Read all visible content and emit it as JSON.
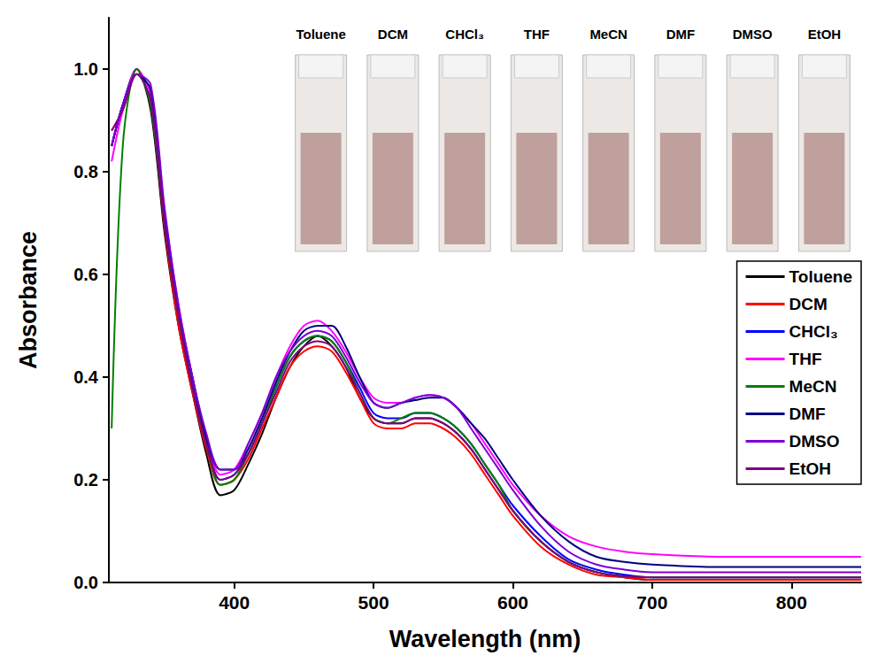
{
  "chart_data": {
    "type": "line",
    "x_label": "Wavelength (nm)",
    "y_label": "Absorbance",
    "x": [
      312,
      320,
      330,
      340,
      350,
      360,
      370,
      380,
      390,
      400,
      410,
      420,
      430,
      440,
      450,
      460,
      470,
      480,
      490,
      500,
      510,
      520,
      530,
      540,
      550,
      560,
      570,
      580,
      590,
      600,
      620,
      640,
      660,
      680,
      700,
      750,
      800,
      850
    ],
    "series": [
      {
        "name": "Toluene",
        "color": "#000000",
        "values": [
          0.85,
          0.93,
          1.0,
          0.92,
          0.68,
          0.5,
          0.37,
          0.25,
          0.17,
          0.18,
          0.23,
          0.29,
          0.36,
          0.42,
          0.46,
          0.48,
          0.46,
          0.42,
          0.36,
          0.32,
          0.31,
          0.31,
          0.32,
          0.32,
          0.31,
          0.29,
          0.26,
          0.22,
          0.18,
          0.14,
          0.08,
          0.04,
          0.02,
          0.01,
          0.005,
          0.005,
          0.005,
          0.005
        ]
      },
      {
        "name": "DCM",
        "color": "#ff0000",
        "values": [
          0.88,
          0.92,
          1.0,
          0.93,
          0.69,
          0.5,
          0.37,
          0.26,
          0.19,
          0.2,
          0.24,
          0.3,
          0.36,
          0.42,
          0.45,
          0.46,
          0.45,
          0.41,
          0.36,
          0.31,
          0.3,
          0.3,
          0.31,
          0.31,
          0.3,
          0.28,
          0.25,
          0.21,
          0.17,
          0.13,
          0.07,
          0.035,
          0.015,
          0.01,
          0.005,
          0.005,
          0.005,
          0.005
        ]
      },
      {
        "name": "CHCl₃",
        "color": "#0000ff",
        "values": [
          0.85,
          0.93,
          1.0,
          0.93,
          0.7,
          0.52,
          0.39,
          0.27,
          0.2,
          0.21,
          0.25,
          0.31,
          0.38,
          0.44,
          0.47,
          0.48,
          0.47,
          0.43,
          0.38,
          0.33,
          0.32,
          0.32,
          0.33,
          0.33,
          0.32,
          0.3,
          0.27,
          0.23,
          0.19,
          0.15,
          0.09,
          0.045,
          0.025,
          0.015,
          0.01,
          0.01,
          0.01,
          0.01
        ]
      },
      {
        "name": "THF",
        "color": "#ff00ff",
        "values": [
          0.82,
          0.92,
          1.0,
          0.95,
          0.72,
          0.54,
          0.4,
          0.28,
          0.21,
          0.22,
          0.27,
          0.33,
          0.4,
          0.46,
          0.5,
          0.51,
          0.49,
          0.45,
          0.4,
          0.36,
          0.35,
          0.35,
          0.36,
          0.365,
          0.36,
          0.34,
          0.31,
          0.27,
          0.23,
          0.19,
          0.13,
          0.09,
          0.07,
          0.06,
          0.055,
          0.05,
          0.05,
          0.05
        ]
      },
      {
        "name": "MeCN",
        "color": "#008000",
        "values": [
          0.3,
          0.85,
          1.0,
          0.93,
          0.7,
          0.52,
          0.38,
          0.27,
          0.19,
          0.2,
          0.25,
          0.31,
          0.38,
          0.44,
          0.47,
          0.48,
          0.47,
          0.43,
          0.37,
          0.32,
          0.31,
          0.32,
          0.33,
          0.33,
          0.32,
          0.3,
          0.27,
          0.23,
          0.19,
          0.14,
          0.08,
          0.04,
          0.02,
          0.012,
          0.01,
          0.01,
          0.01,
          0.01
        ]
      },
      {
        "name": "DMF",
        "color": "#000080",
        "values": [
          0.85,
          0.93,
          0.99,
          0.96,
          0.72,
          0.53,
          0.4,
          0.28,
          0.22,
          0.22,
          0.26,
          0.32,
          0.39,
          0.45,
          0.49,
          0.5,
          0.5,
          0.46,
          0.4,
          0.35,
          0.34,
          0.35,
          0.355,
          0.36,
          0.36,
          0.34,
          0.31,
          0.28,
          0.24,
          0.2,
          0.13,
          0.08,
          0.05,
          0.04,
          0.035,
          0.03,
          0.03,
          0.03
        ]
      },
      {
        "name": "DMSO",
        "color": "#7b00d4",
        "values": [
          0.85,
          0.93,
          0.99,
          0.97,
          0.73,
          0.54,
          0.4,
          0.29,
          0.22,
          0.22,
          0.27,
          0.33,
          0.4,
          0.45,
          0.48,
          0.49,
          0.48,
          0.44,
          0.39,
          0.35,
          0.34,
          0.35,
          0.36,
          0.365,
          0.36,
          0.34,
          0.3,
          0.26,
          0.22,
          0.18,
          0.11,
          0.06,
          0.035,
          0.025,
          0.02,
          0.02,
          0.02,
          0.02
        ]
      },
      {
        "name": "EtOH",
        "color": "#800080",
        "values": [
          0.88,
          0.92,
          0.99,
          0.94,
          0.7,
          0.52,
          0.38,
          0.27,
          0.2,
          0.21,
          0.25,
          0.31,
          0.37,
          0.43,
          0.46,
          0.47,
          0.46,
          0.42,
          0.37,
          0.32,
          0.31,
          0.31,
          0.32,
          0.32,
          0.31,
          0.29,
          0.26,
          0.22,
          0.18,
          0.14,
          0.08,
          0.04,
          0.02,
          0.012,
          0.01,
          0.01,
          0.01,
          0.01
        ]
      }
    ],
    "xlim": [
      310,
      850
    ],
    "xticks": [
      400,
      500,
      600,
      700,
      800
    ],
    "ylim": [
      0,
      1.1
    ],
    "yticks": [
      {
        "value": 0,
        "label": "0.0"
      },
      0.2,
      0.4,
      0.6,
      0.8,
      {
        "value": 1,
        "label": "1.0"
      }
    ],
    "grid": false,
    "legend": "right"
  }
}
